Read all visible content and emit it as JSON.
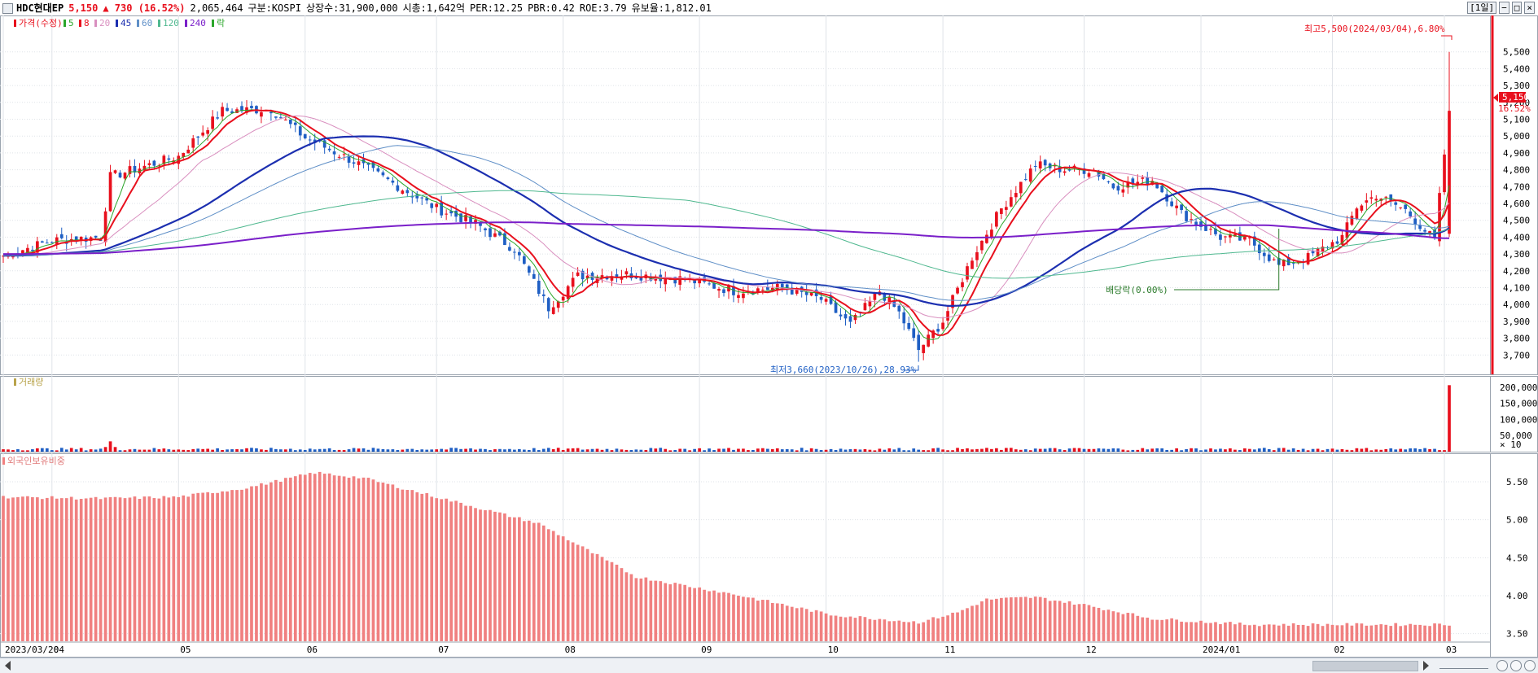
{
  "header": {
    "stock_name": "HDC현대EP",
    "price": "5,150",
    "change": "▲ 730 (16.52%)",
    "volume": "2,065,464",
    "market": "구분:KOSPI",
    "shares": "상장수:31,900,000",
    "market_cap": "시총:1,642억",
    "per": "PER:12.25",
    "pbr": "PBR:0.42",
    "roe": "ROE:3.79",
    "float_ratio": "유보율:1,812.01",
    "period_button": "[1일]"
  },
  "legend": {
    "price_label": "가격(수정)",
    "ma": [
      {
        "label": "5",
        "color": "#2aa62a"
      },
      {
        "label": "8",
        "color": "#e8101d"
      },
      {
        "label": "20",
        "color": "#d98fbf"
      },
      {
        "label": "45",
        "color": "#1c2fb0"
      },
      {
        "label": "60",
        "color": "#5f8fc7"
      },
      {
        "label": "120",
        "color": "#4fb88f"
      },
      {
        "label": "240",
        "color": "#7a1fc9"
      }
    ],
    "event_label": "락",
    "event_color": "#2aa62a"
  },
  "volume_panel": {
    "title": "거래량"
  },
  "foreign_panel": {
    "title": "외국인보유비중"
  },
  "annotations": {
    "high": "최고5,500(2024/03/04),6.80%",
    "low": "최저3,660(2023/10/26),28.93%",
    "dividend": "배당락(0.00%)",
    "last_price": "5,150",
    "last_change": "16.52%"
  },
  "colors": {
    "up": "#e8101d",
    "down": "#1f5fc4",
    "grid": "#dfe3e8",
    "foreign_bar": "#f08080"
  },
  "chart_data": [
    {
      "type": "candlestick",
      "title": "가격(수정)",
      "ylim": [
        3600,
        5600
      ],
      "y_ticks": [
        "5,500",
        "5,400",
        "5,300",
        "5,200",
        "5,100",
        "5,000",
        "4,900",
        "4,800",
        "4,700",
        "4,600",
        "4,500",
        "4,400",
        "4,300",
        "4,200",
        "4,100",
        "4,000",
        "3,900",
        "3,800",
        "3,700"
      ],
      "x_tick_labels": [
        "2023/03/20",
        "04",
        "05",
        "06",
        "07",
        "08",
        "09",
        "10",
        "11",
        "12",
        "2024/01",
        "02",
        "03"
      ],
      "x_tick_index": [
        0,
        10,
        36,
        62,
        89,
        115,
        143,
        169,
        193,
        222,
        246,
        273,
        296
      ],
      "close_anchors": [
        [
          0,
          4290
        ],
        [
          10,
          4380
        ],
        [
          20,
          4400
        ],
        [
          22,
          4760
        ],
        [
          36,
          4880
        ],
        [
          45,
          5150
        ],
        [
          55,
          5160
        ],
        [
          62,
          4990
        ],
        [
          72,
          4850
        ],
        [
          80,
          4720
        ],
        [
          89,
          4570
        ],
        [
          97,
          4480
        ],
        [
          105,
          4330
        ],
        [
          112,
          3980
        ],
        [
          118,
          4170
        ],
        [
          128,
          4180
        ],
        [
          140,
          4150
        ],
        [
          150,
          4080
        ],
        [
          160,
          4100
        ],
        [
          168,
          4030
        ],
        [
          174,
          3880
        ],
        [
          180,
          4080
        ],
        [
          184,
          3950
        ],
        [
          188,
          3730
        ],
        [
          193,
          3900
        ],
        [
          199,
          4280
        ],
        [
          205,
          4570
        ],
        [
          212,
          4830
        ],
        [
          218,
          4800
        ],
        [
          224,
          4800
        ],
        [
          228,
          4700
        ],
        [
          236,
          4740
        ],
        [
          242,
          4540
        ],
        [
          250,
          4400
        ],
        [
          256,
          4380
        ],
        [
          262,
          4230
        ],
        [
          268,
          4280
        ],
        [
          275,
          4400
        ],
        [
          278,
          4580
        ],
        [
          282,
          4650
        ],
        [
          288,
          4560
        ],
        [
          294,
          4380
        ],
        [
          297,
          5150
        ]
      ],
      "high": {
        "value": 5500,
        "label": "최고5,500(2024/03/04),6.80%"
      },
      "low": {
        "value": 3660,
        "label": "최저3,660(2023/10/26),28.93%"
      },
      "moving_averages": [
        "5",
        "8",
        "20",
        "45",
        "60",
        "120",
        "240"
      ]
    },
    {
      "type": "bar",
      "title": "거래량",
      "ylim": [
        0,
        220000
      ],
      "y_ticks": [
        "200,000",
        "150,000",
        "100,000",
        "50,000",
        "× 10"
      ],
      "typical_volume": 8000,
      "peak": {
        "index": 22,
        "value": 32000
      },
      "last": {
        "index": 297,
        "value": 206546
      }
    },
    {
      "type": "bar",
      "title": "외국인보유비중",
      "ylim": [
        3.4,
        5.8
      ],
      "y_ticks": [
        "5.50",
        "5.00",
        "4.50",
        "4.00",
        "3.50"
      ],
      "anchors": [
        [
          0,
          5.3
        ],
        [
          20,
          5.28
        ],
        [
          36,
          5.3
        ],
        [
          50,
          5.42
        ],
        [
          64,
          5.62
        ],
        [
          74,
          5.55
        ],
        [
          89,
          5.3
        ],
        [
          110,
          4.95
        ],
        [
          130,
          4.25
        ],
        [
          150,
          4.02
        ],
        [
          170,
          3.75
        ],
        [
          188,
          3.65
        ],
        [
          196,
          3.78
        ],
        [
          202,
          3.95
        ],
        [
          212,
          3.98
        ],
        [
          222,
          3.88
        ],
        [
          236,
          3.7
        ],
        [
          256,
          3.62
        ],
        [
          276,
          3.62
        ],
        [
          297,
          3.62
        ]
      ]
    }
  ]
}
